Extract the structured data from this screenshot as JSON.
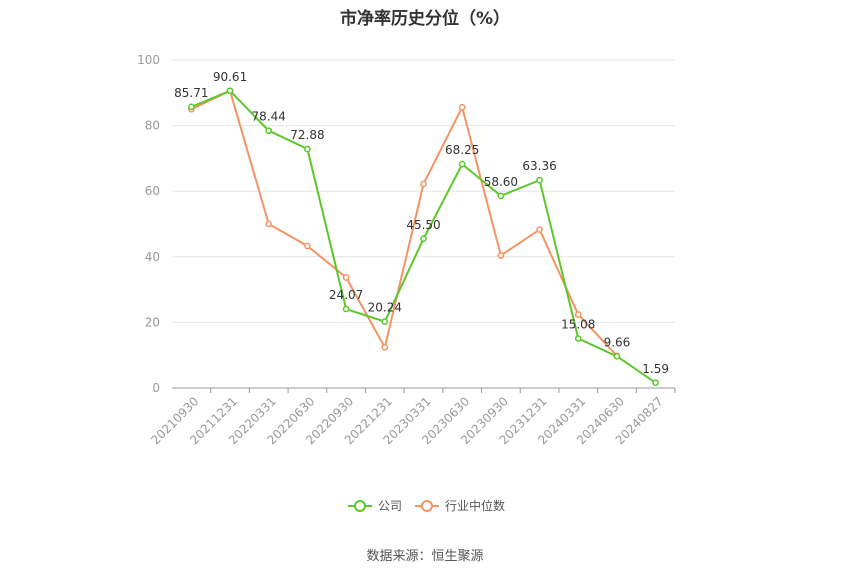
{
  "chart_data": {
    "type": "line",
    "title": "市净率历史分位（%）",
    "source": "数据来源：恒生聚源",
    "categories": [
      "20210930",
      "20211231",
      "20220331",
      "20220630",
      "20220930",
      "20221231",
      "20230331",
      "20230630",
      "20230930",
      "20231231",
      "20240331",
      "20240630",
      "20240827"
    ],
    "ylim": [
      0,
      100
    ],
    "yticks": [
      0,
      20,
      40,
      60,
      80,
      100
    ],
    "grid": true,
    "legend_position": "bottom",
    "series": [
      {
        "name": "公司",
        "color": "#5cc72b",
        "values": [
          85.71,
          90.61,
          78.44,
          72.88,
          24.07,
          20.24,
          45.5,
          68.25,
          58.6,
          63.36,
          15.08,
          9.66,
          1.59
        ],
        "labels": [
          "85.71",
          "90.61",
          "78.44",
          "72.88",
          "24.07",
          "20.24",
          "45.50",
          "68.25",
          "58.60",
          "63.36",
          "15.08",
          "9.66",
          "1.59"
        ]
      },
      {
        "name": "行业中位数",
        "color": "#f39463",
        "values": [
          85.0,
          90.6,
          50.0,
          43.3,
          33.7,
          12.4,
          62.2,
          85.6,
          40.4,
          48.3,
          22.4,
          9.8,
          null
        ]
      }
    ]
  }
}
